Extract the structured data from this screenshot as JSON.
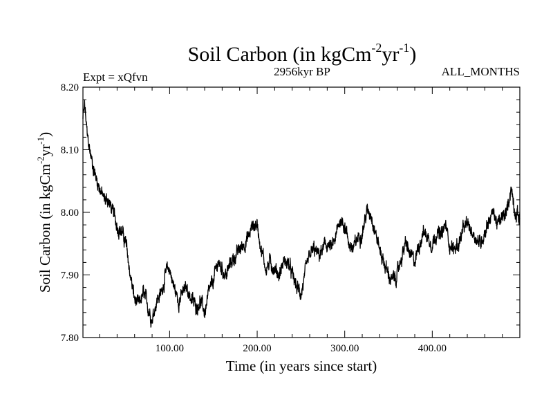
{
  "chart_data": {
    "type": "line",
    "title": "Soil Carbon (in kgCm",
    "title_sup1": "-2",
    "title_mid": "yr",
    "title_sup2": "-1",
    "title_end": ")",
    "subtitle_left": "Expt = xQfvn",
    "subtitle_center": "2956kyr BP",
    "subtitle_right": "ALL_MONTHS",
    "xlabel": "Time (in years since start)",
    "ylabel": "Soil Carbon (in kgCm",
    "ylabel_sup1": "-2",
    "ylabel_mid": "yr",
    "ylabel_sup2": "-1",
    "ylabel_end": ")",
    "xlim": [
      1,
      500
    ],
    "ylim": [
      7.8,
      8.2
    ],
    "xticks": [
      100,
      200,
      300,
      400
    ],
    "xtick_labels": [
      "100.00",
      "200.00",
      "300.00",
      "400.00"
    ],
    "yticks": [
      7.8,
      7.9,
      8.0,
      8.1,
      8.2
    ],
    "ytick_labels": [
      "7.80",
      "7.90",
      "8.00",
      "8.10",
      "8.20"
    ],
    "series": [
      {
        "name": "Soil Carbon",
        "color": "#000000",
        "x": [
          1,
          3,
          6,
          10,
          15,
          20,
          25,
          30,
          35,
          40,
          45,
          50,
          55,
          60,
          65,
          70,
          75,
          80,
          85,
          90,
          95,
          100,
          105,
          110,
          115,
          120,
          125,
          130,
          135,
          140,
          145,
          150,
          155,
          160,
          165,
          170,
          175,
          180,
          185,
          190,
          195,
          200,
          205,
          210,
          215,
          220,
          225,
          230,
          235,
          240,
          245,
          250,
          255,
          260,
          265,
          270,
          275,
          280,
          285,
          290,
          295,
          300,
          305,
          310,
          315,
          320,
          325,
          330,
          335,
          340,
          345,
          350,
          355,
          360,
          365,
          370,
          375,
          380,
          385,
          390,
          395,
          400,
          405,
          410,
          415,
          420,
          425,
          430,
          435,
          440,
          445,
          450,
          455,
          460,
          465,
          470,
          475,
          480,
          485,
          490,
          495,
          500
        ],
        "values": [
          8.15,
          8.17,
          8.12,
          8.09,
          8.06,
          8.04,
          8.02,
          8.02,
          8.0,
          7.98,
          7.97,
          7.95,
          7.9,
          7.86,
          7.85,
          7.87,
          7.85,
          7.83,
          7.86,
          7.87,
          7.9,
          7.91,
          7.88,
          7.86,
          7.87,
          7.88,
          7.86,
          7.85,
          7.86,
          7.84,
          7.87,
          7.89,
          7.92,
          7.91,
          7.9,
          7.92,
          7.93,
          7.94,
          7.95,
          7.96,
          7.98,
          7.98,
          7.94,
          7.91,
          7.92,
          7.91,
          7.9,
          7.92,
          7.92,
          7.9,
          7.88,
          7.87,
          7.9,
          7.93,
          7.94,
          7.93,
          7.94,
          7.95,
          7.94,
          7.96,
          7.99,
          7.98,
          7.95,
          7.94,
          7.96,
          7.97,
          8.0,
          8.0,
          7.97,
          7.94,
          7.92,
          7.9,
          7.89,
          7.9,
          7.93,
          7.95,
          7.93,
          7.92,
          7.95,
          7.97,
          7.96,
          7.95,
          7.97,
          7.96,
          7.98,
          7.95,
          7.94,
          7.95,
          7.97,
          7.98,
          7.97,
          7.96,
          7.95,
          7.97,
          7.99,
          8.0,
          7.98,
          7.99,
          8.0,
          8.04,
          8.0,
          7.99
        ]
      }
    ]
  }
}
